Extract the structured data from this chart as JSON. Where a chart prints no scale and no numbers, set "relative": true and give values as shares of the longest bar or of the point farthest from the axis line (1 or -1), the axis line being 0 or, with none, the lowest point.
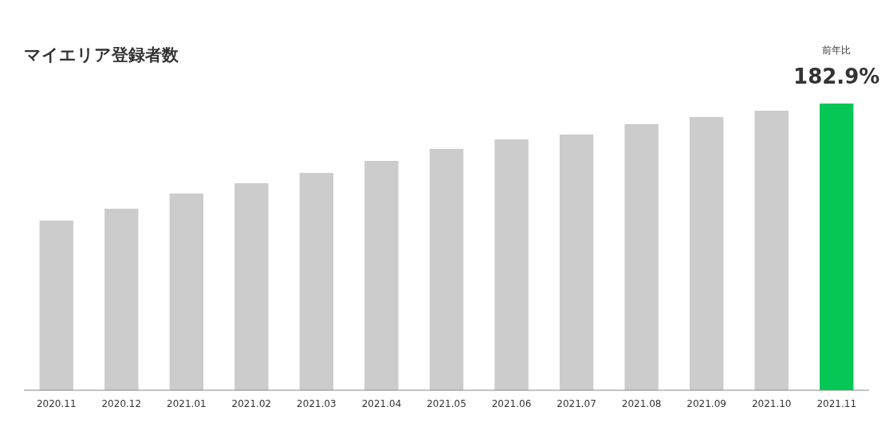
{
  "chart_data": {
    "type": "bar",
    "relative": true,
    "title": "マイエリア登録者数",
    "categories": [
      "2020.11",
      "2020.12",
      "2021.01",
      "2021.02",
      "2021.03",
      "2021.04",
      "2021.05",
      "2021.06",
      "2021.07",
      "2021.08",
      "2021.09",
      "2021.10",
      "2021.11"
    ],
    "values": [
      0.592,
      0.633,
      0.686,
      0.722,
      0.758,
      0.8,
      0.842,
      0.875,
      0.892,
      0.928,
      0.953,
      0.975,
      1
    ],
    "colors": [
      "#cccccc",
      "#cccccc",
      "#cccccc",
      "#cccccc",
      "#cccccc",
      "#cccccc",
      "#cccccc",
      "#cccccc",
      "#cccccc",
      "#cccccc",
      "#cccccc",
      "#cccccc",
      "#06c755"
    ],
    "annotations": [
      "前年比",
      "182.9%"
    ]
  }
}
